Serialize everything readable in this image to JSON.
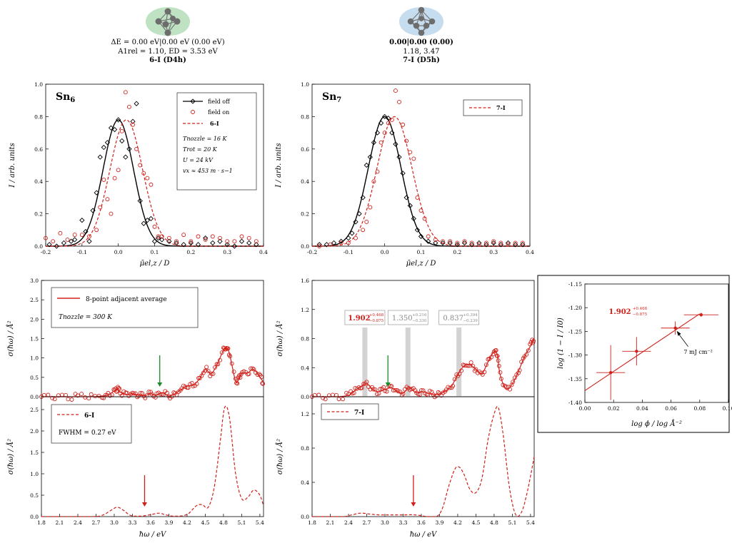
{
  "clusters": [
    {
      "energy_line": "ΔE = 0.00 eV|0.00 eV (0.00 eV)",
      "params_line": "A1rel = 1.10, ED = 3.53 eV",
      "label_line": "6-I (D4h)",
      "color": "#bfe3c2"
    },
    {
      "energy_line": "0.00|0.00 (0.00)",
      "params_line": "1.18, 3.47",
      "label_line": "7-I (D5h)",
      "color": "#c6dcef"
    }
  ],
  "chart_data": [
    {
      "id": "sn6_deflection",
      "type": "line",
      "title": "Sn6",
      "xlabel": "μ̄el,z / D",
      "ylabel": "I / arb. units",
      "xlim": [
        -0.2,
        0.4
      ],
      "ylim": [
        0.0,
        1.0
      ],
      "xticks": [
        "-0.2",
        "-0.1",
        "0.0",
        "0.1",
        "0.2",
        "0.3",
        "0.4"
      ],
      "yticks": [
        "0.0",
        "0.2",
        "0.4",
        "0.6",
        "0.8",
        "1.0"
      ],
      "legend": {
        "position": "top-right",
        "entries": [
          "field off",
          "field on",
          "6-I"
        ],
        "params": [
          "Tnozzle = 16 K",
          "Trot = 20 K",
          "U = 24 kV",
          "vx ≈ 453 m · s−1"
        ]
      },
      "series": [
        {
          "name": "field off",
          "style": "solid-black-diamonds",
          "color": "#000000",
          "x": [
            -0.19,
            -0.17,
            -0.15,
            -0.13,
            -0.12,
            -0.1,
            -0.09,
            -0.08,
            -0.07,
            -0.06,
            -0.05,
            -0.04,
            -0.03,
            -0.02,
            -0.01,
            0.0,
            0.01,
            0.02,
            0.03,
            0.04,
            0.05,
            0.06,
            0.07,
            0.08,
            0.09,
            0.1,
            0.11,
            0.12,
            0.14,
            0.16,
            0.18,
            0.2,
            0.22,
            0.24,
            0.26,
            0.28,
            0.3,
            0.32,
            0.34,
            0.36,
            0.38
          ],
          "y": [
            0.01,
            0.0,
            0.02,
            0.03,
            0.04,
            0.16,
            0.09,
            0.03,
            0.22,
            0.33,
            0.55,
            0.61,
            0.64,
            0.73,
            0.72,
            0.78,
            0.65,
            0.55,
            0.6,
            0.77,
            0.88,
            0.28,
            0.14,
            0.16,
            0.17,
            0.03,
            0.05,
            0.04,
            0.03,
            0.02,
            0.01,
            0.02,
            0.01,
            0.05,
            0.02,
            0.03,
            0.01,
            0.0,
            0.03,
            0.02,
            0.01
          ],
          "fit_mu": 0.0,
          "fit_sigma": 0.042,
          "fit_amp": 0.78
        },
        {
          "name": "field on",
          "style": "red-circles",
          "color": "#d0201a",
          "x": [
            -0.2,
            -0.18,
            -0.16,
            -0.14,
            -0.12,
            -0.1,
            -0.08,
            -0.06,
            -0.05,
            -0.04,
            -0.03,
            -0.02,
            -0.01,
            0.0,
            0.01,
            0.02,
            0.03,
            0.04,
            0.05,
            0.06,
            0.07,
            0.08,
            0.09,
            0.1,
            0.11,
            0.12,
            0.14,
            0.16,
            0.18,
            0.2,
            0.22,
            0.24,
            0.26,
            0.28,
            0.3,
            0.32,
            0.34,
            0.36,
            0.38
          ],
          "y": [
            0.05,
            0.03,
            0.08,
            0.04,
            0.07,
            0.07,
            0.06,
            0.1,
            0.24,
            0.41,
            0.29,
            0.2,
            0.42,
            0.47,
            0.71,
            0.95,
            0.86,
            0.75,
            0.6,
            0.5,
            0.45,
            0.42,
            0.38,
            0.12,
            0.06,
            0.06,
            0.05,
            0.03,
            0.07,
            0.03,
            0.06,
            0.04,
            0.06,
            0.05,
            0.03,
            0.03,
            0.06,
            0.05,
            0.03
          ]
        },
        {
          "name": "6-I",
          "style": "red-dashed",
          "color": "#d0201a",
          "fit_mu": 0.022,
          "fit_sigma": 0.045,
          "fit_amp": 0.78
        }
      ]
    },
    {
      "id": "sn7_deflection",
      "type": "line",
      "title": "Sn7",
      "xlabel": "μ̄el,z / D",
      "ylabel": "I / arb. units",
      "xlim": [
        -0.2,
        0.4
      ],
      "ylim": [
        0.0,
        1.0
      ],
      "xticks": [
        "-0.2",
        "-0.1",
        "0.0",
        "0.1",
        "0.2",
        "0.3",
        "0.4"
      ],
      "yticks": [
        "0.0",
        "0.2",
        "0.4",
        "0.6",
        "0.8",
        "1.0"
      ],
      "legend": {
        "position": "top-right",
        "entries": [
          "7-I"
        ]
      },
      "series": [
        {
          "name": "field off",
          "style": "solid-black-diamonds",
          "color": "#000000",
          "x": [
            -0.18,
            -0.16,
            -0.14,
            -0.12,
            -0.1,
            -0.09,
            -0.08,
            -0.07,
            -0.06,
            -0.05,
            -0.04,
            -0.03,
            -0.02,
            -0.01,
            0.0,
            0.01,
            0.02,
            0.03,
            0.04,
            0.05,
            0.06,
            0.07,
            0.08,
            0.09,
            0.1,
            0.12,
            0.14,
            0.16,
            0.18,
            0.2,
            0.22,
            0.24,
            0.26,
            0.28,
            0.3,
            0.32,
            0.34,
            0.36,
            0.38
          ],
          "y": [
            0.01,
            0.01,
            0.02,
            0.03,
            0.05,
            0.08,
            0.15,
            0.2,
            0.3,
            0.5,
            0.55,
            0.64,
            0.7,
            0.76,
            0.8,
            0.79,
            0.7,
            0.63,
            0.55,
            0.45,
            0.3,
            0.25,
            0.17,
            0.1,
            0.06,
            0.03,
            0.02,
            0.02,
            0.02,
            0.01,
            0.02,
            0.01,
            0.02,
            0.01,
            0.02,
            0.01,
            0.02,
            0.01,
            0.01
          ],
          "fit_mu": 0.0,
          "fit_sigma": 0.045,
          "fit_amp": 0.8
        },
        {
          "name": "field on",
          "style": "red-circles",
          "color": "#d0201a",
          "x": [
            -0.18,
            -0.15,
            -0.12,
            -0.1,
            -0.08,
            -0.06,
            -0.05,
            -0.04,
            -0.03,
            -0.02,
            -0.01,
            0.0,
            0.01,
            0.02,
            0.03,
            0.04,
            0.05,
            0.06,
            0.07,
            0.08,
            0.09,
            0.1,
            0.11,
            0.12,
            0.14,
            0.16,
            0.18,
            0.2,
            0.22,
            0.24,
            0.26,
            0.28,
            0.3,
            0.32,
            0.34,
            0.36,
            0.38
          ],
          "y": [
            0.0,
            0.01,
            0.02,
            0.02,
            0.05,
            0.1,
            0.15,
            0.24,
            0.4,
            0.46,
            0.64,
            0.7,
            0.76,
            0.78,
            0.96,
            0.89,
            0.75,
            0.65,
            0.58,
            0.54,
            0.3,
            0.22,
            0.17,
            0.06,
            0.04,
            0.03,
            0.03,
            0.02,
            0.03,
            0.02,
            0.01,
            0.02,
            0.03,
            0.02,
            0.01,
            0.02,
            0.02
          ]
        },
        {
          "name": "7-I",
          "style": "red-dashed",
          "color": "#d0201a",
          "fit_mu": 0.027,
          "fit_sigma": 0.048,
          "fit_amp": 0.8
        }
      ]
    },
    {
      "id": "sn6_exp_spectrum",
      "type": "line",
      "xlabel": "",
      "ylabel": "σ(ħω) / Å²",
      "xlim": [
        1.8,
        5.46
      ],
      "ylim": [
        0.0,
        3.0
      ],
      "yticks": [
        "0.0",
        "0.5",
        "1.0",
        "1.5",
        "2.0",
        "2.5",
        "3.0"
      ],
      "legend": {
        "position": "top-left",
        "entries": [
          "8-point adjacent average"
        ],
        "params": [
          "Tnozzle = 300 K"
        ]
      },
      "arrow": {
        "x": 3.75,
        "color": "#1a8a2a"
      },
      "series": [
        {
          "name": "8-point adjacent average",
          "color": "#d0201a",
          "x": [
            1.8,
            2.0,
            2.2,
            2.4,
            2.6,
            2.8,
            2.9,
            3.0,
            3.05,
            3.1,
            3.2,
            3.3,
            3.4,
            3.5,
            3.6,
            3.7,
            3.8,
            3.9,
            4.0,
            4.1,
            4.2,
            4.3,
            4.4,
            4.5,
            4.6,
            4.7,
            4.8,
            4.85,
            4.9,
            5.0,
            5.05,
            5.1,
            5.2,
            5.3,
            5.4,
            5.45
          ],
          "y": [
            0.0,
            0.0,
            0.0,
            0.0,
            0.0,
            0.02,
            0.05,
            0.15,
            0.2,
            0.12,
            0.05,
            0.08,
            0.04,
            0.03,
            0.07,
            0.05,
            0.1,
            0.02,
            0.08,
            0.18,
            0.28,
            0.3,
            0.45,
            0.7,
            0.6,
            0.85,
            1.2,
            1.25,
            1.1,
            0.4,
            0.45,
            0.6,
            0.62,
            0.7,
            0.5,
            0.4
          ]
        }
      ]
    },
    {
      "id": "sn7_exp_spectrum",
      "type": "line",
      "xlabel": "",
      "ylabel": "σ(ħω) / Å²",
      "xlim": [
        1.8,
        5.46
      ],
      "ylim": [
        0.0,
        1.6
      ],
      "yticks": [
        "0.0",
        "0.4",
        "0.8",
        "1.2",
        "1.6"
      ],
      "arrow": {
        "x": 3.05,
        "color": "#1a8a2a"
      },
      "bands": [
        {
          "x": 2.67,
          "value": "1.902",
          "plus": "+0.468",
          "minus": "−0.875",
          "color": "#d0201a"
        },
        {
          "x": 3.38,
          "value": "1.350",
          "plus": "+0.216",
          "minus": "−0.330",
          "color": "#8a8a8a"
        },
        {
          "x": 4.22,
          "value": "0.837",
          "plus": "+0.394",
          "minus": "−0.239",
          "color": "#8a8a8a"
        }
      ],
      "series": [
        {
          "name": "8-point adjacent average",
          "color": "#d0201a",
          "x": [
            1.8,
            2.0,
            2.2,
            2.4,
            2.5,
            2.6,
            2.7,
            2.8,
            2.9,
            3.0,
            3.1,
            3.2,
            3.3,
            3.4,
            3.5,
            3.6,
            3.7,
            3.8,
            3.9,
            4.0,
            4.1,
            4.2,
            4.3,
            4.4,
            4.5,
            4.6,
            4.7,
            4.8,
            4.85,
            4.9,
            5.0,
            5.1,
            5.2,
            5.3,
            5.4,
            5.45
          ],
          "y": [
            0.0,
            0.0,
            0.0,
            0.02,
            0.08,
            0.14,
            0.18,
            0.1,
            0.07,
            0.1,
            0.12,
            0.08,
            0.05,
            0.13,
            0.06,
            0.07,
            0.05,
            0.03,
            0.04,
            0.08,
            0.15,
            0.3,
            0.42,
            0.44,
            0.38,
            0.32,
            0.48,
            0.62,
            0.58,
            0.3,
            0.1,
            0.18,
            0.35,
            0.55,
            0.7,
            0.8
          ]
        }
      ]
    },
    {
      "id": "sn6_calc_spectrum",
      "type": "line",
      "xlabel": "ħω / eV",
      "ylabel": "σ(ħω) / Å²",
      "xlim": [
        1.8,
        5.46
      ],
      "ylim": [
        0.0,
        2.8
      ],
      "xticks": [
        "1.8",
        "2.1",
        "2.4",
        "2.7",
        "3.0",
        "3.3",
        "3.6",
        "3.9",
        "4.2",
        "4.5",
        "4.8",
        "5.1",
        "5.4"
      ],
      "yticks": [
        "0.0",
        "0.5",
        "1.0",
        "1.5",
        "2.0",
        "2.5"
      ],
      "legend": {
        "position": "top-left",
        "entries": [
          "6-I"
        ],
        "params": [
          "FWHM = 0.27 eV"
        ]
      },
      "arrow": {
        "x": 3.5,
        "color": "#d0201a"
      },
      "series": [
        {
          "name": "6-I",
          "style": "red-dashed",
          "color": "#d0201a",
          "x": [
            1.8,
            2.6,
            2.8,
            2.95,
            3.05,
            3.15,
            3.25,
            3.35,
            3.5,
            3.65,
            3.75,
            3.85,
            4.0,
            4.2,
            4.35,
            4.45,
            4.55,
            4.65,
            4.75,
            4.82,
            4.9,
            5.0,
            5.1,
            5.2,
            5.3,
            5.4,
            5.46
          ],
          "y": [
            0.0,
            0.0,
            0.03,
            0.15,
            0.22,
            0.15,
            0.04,
            0.01,
            0.02,
            0.06,
            0.08,
            0.04,
            0.01,
            0.05,
            0.25,
            0.28,
            0.22,
            0.7,
            1.8,
            2.55,
            2.3,
            1.0,
            0.42,
            0.45,
            0.62,
            0.5,
            0.25
          ]
        }
      ]
    },
    {
      "id": "sn7_calc_spectrum",
      "type": "line",
      "xlabel": "ħω / eV",
      "ylabel": "σ(ħω) / Å²",
      "xlim": [
        1.8,
        5.46
      ],
      "ylim": [
        0.0,
        1.4
      ],
      "xticks": [
        "1.8",
        "2.1",
        "2.4",
        "2.7",
        "3.0",
        "3.3",
        "3.6",
        "3.9",
        "4.2",
        "4.5",
        "4.8",
        "5.1",
        "5.4"
      ],
      "yticks": [
        "0.0",
        "0.4",
        "0.8",
        "1.2"
      ],
      "legend": {
        "position": "top-left",
        "entries": [
          "7-I"
        ]
      },
      "arrow": {
        "x": 3.47,
        "color": "#d0201a"
      },
      "series": [
        {
          "name": "7-I",
          "style": "red-dashed",
          "color": "#d0201a",
          "x": [
            1.8,
            2.3,
            2.45,
            2.6,
            2.75,
            2.9,
            3.1,
            3.3,
            3.5,
            3.7,
            3.85,
            3.95,
            4.05,
            4.15,
            4.22,
            4.3,
            4.4,
            4.5,
            4.6,
            4.7,
            4.8,
            4.87,
            4.95,
            5.05,
            5.15,
            5.25,
            5.35,
            5.46
          ],
          "y": [
            0.0,
            0.0,
            0.02,
            0.04,
            0.03,
            0.02,
            0.02,
            0.02,
            0.02,
            0.0,
            0.0,
            0.1,
            0.35,
            0.55,
            0.58,
            0.5,
            0.32,
            0.28,
            0.45,
            0.9,
            1.2,
            1.27,
            0.95,
            0.35,
            0.03,
            0.05,
            0.3,
            0.7
          ]
        }
      ]
    },
    {
      "id": "fluence_inset",
      "type": "scatter",
      "xlabel": "log ϕ / log Å⁻²",
      "ylabel": "log (1 − I / I0)",
      "xlim": [
        0.0,
        0.1
      ],
      "ylim": [
        -1.4,
        -1.15
      ],
      "xticks": [
        "0.00",
        "0.02",
        "0.04",
        "0.06",
        "0.08",
        "0.10"
      ],
      "yticks": [
        "-1.40",
        "-1.35",
        "-1.30",
        "-1.25",
        "-1.20",
        "-1.15"
      ],
      "annotation": {
        "value": "1.902",
        "plus": "+0.468",
        "minus": "−0.875",
        "arrow_label": "7 mJ cm⁻²"
      },
      "series": [
        {
          "name": "",
          "color": "#d0201a",
          "x": [
            0.018,
            0.036,
            0.063,
            0.081
          ],
          "y": [
            -1.337,
            -1.292,
            -1.243,
            -1.215
          ],
          "xerr": [
            0.01,
            0.01,
            0.01,
            0.012
          ],
          "yerr": [
            0.058,
            0.03,
            0.014,
            0.004
          ]
        }
      ],
      "fit": {
        "x": [
          0.0,
          0.08
        ],
        "y": [
          -1.375,
          -1.213
        ]
      }
    }
  ]
}
